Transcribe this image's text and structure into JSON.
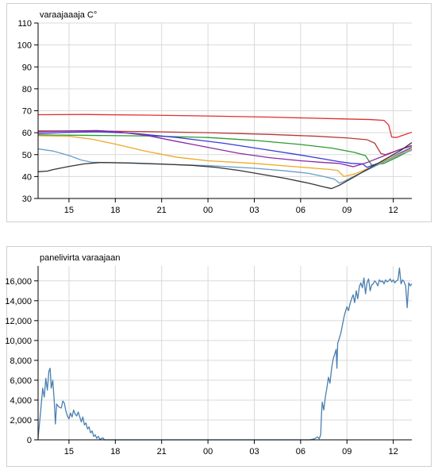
{
  "chart_data": [
    {
      "type": "line",
      "title": "varaajaaaja C°",
      "ylim": [
        30,
        110
      ],
      "yticks": [
        30,
        40,
        50,
        60,
        70,
        80,
        90,
        100,
        110
      ],
      "xlim": [
        13.0,
        37.2
      ],
      "xticks": [
        {
          "x": 15,
          "label": "15"
        },
        {
          "x": 18,
          "label": "18"
        },
        {
          "x": 21,
          "label": "21"
        },
        {
          "x": 24,
          "label": "00"
        },
        {
          "x": 27,
          "label": "03"
        },
        {
          "x": 30,
          "label": "06"
        },
        {
          "x": 33,
          "label": "09"
        },
        {
          "x": 36,
          "label": "12"
        }
      ],
      "grid": true,
      "series": [
        {
          "color": "#e03030",
          "points": [
            [
              13.0,
              68.2
            ],
            [
              16,
              68.3
            ],
            [
              20,
              68.0
            ],
            [
              24,
              67.6
            ],
            [
              28,
              67.1
            ],
            [
              32,
              66.4
            ],
            [
              34.5,
              66.0
            ],
            [
              35.4,
              65.6
            ],
            [
              35.7,
              63.5
            ],
            [
              35.9,
              58.0
            ],
            [
              36.2,
              57.8
            ],
            [
              36.7,
              59.0
            ],
            [
              37.2,
              60.2
            ]
          ]
        },
        {
          "color": "#b83838",
          "points": [
            [
              13.0,
              60.8
            ],
            [
              16,
              60.8
            ],
            [
              20,
              60.5
            ],
            [
              24,
              60.0
            ],
            [
              28,
              59.2
            ],
            [
              31,
              58.4
            ],
            [
              33,
              57.6
            ],
            [
              34.3,
              56.8
            ],
            [
              34.8,
              55.2
            ],
            [
              35.2,
              50.5
            ],
            [
              35.5,
              50.0
            ],
            [
              36.3,
              52.0
            ],
            [
              37.2,
              54.0
            ]
          ]
        },
        {
          "color": "#2e9a2e",
          "points": [
            [
              13.0,
              59.0
            ],
            [
              16,
              58.8
            ],
            [
              20,
              58.5
            ],
            [
              24,
              57.8
            ],
            [
              27,
              56.5
            ],
            [
              30,
              54.6
            ],
            [
              32,
              53.0
            ],
            [
              33.5,
              51.0
            ],
            [
              34.2,
              49.5
            ],
            [
              34.6,
              45.2
            ],
            [
              35.4,
              46.0
            ],
            [
              36.3,
              49.0
            ],
            [
              37.2,
              52.3
            ]
          ]
        },
        {
          "color": "#3a3ad8",
          "points": [
            [
              13.0,
              59.6
            ],
            [
              15,
              60.2
            ],
            [
              17,
              60.4
            ],
            [
              19,
              59.8
            ],
            [
              22,
              57.8
            ],
            [
              25,
              55.2
            ],
            [
              28,
              52.0
            ],
            [
              30,
              49.8
            ],
            [
              31.5,
              48.0
            ],
            [
              32.5,
              46.8
            ],
            [
              33.3,
              46.0
            ],
            [
              34.0,
              45.8
            ],
            [
              34.3,
              44.2
            ],
            [
              35.4,
              47.0
            ],
            [
              36.3,
              50.3
            ],
            [
              37.2,
              53.3
            ]
          ]
        },
        {
          "color": "#8a2aa8",
          "points": [
            [
              13.0,
              60.4
            ],
            [
              15,
              60.8
            ],
            [
              16.8,
              61.0
            ],
            [
              18,
              60.5
            ],
            [
              20,
              58.8
            ],
            [
              22,
              56.0
            ],
            [
              24,
              53.3
            ],
            [
              26,
              50.6
            ],
            [
              28,
              48.6
            ],
            [
              30,
              47.2
            ],
            [
              31.5,
              46.4
            ],
            [
              32.5,
              46.0
            ],
            [
              33.4,
              44.5
            ],
            [
              34.3,
              46.4
            ],
            [
              35.3,
              49.2
            ],
            [
              36.3,
              52.0
            ],
            [
              37.2,
              54.2
            ]
          ]
        },
        {
          "color": "#f0a828",
          "points": [
            [
              13.0,
              58.6
            ],
            [
              15,
              58.4
            ],
            [
              16.5,
              57.0
            ],
            [
              18,
              54.8
            ],
            [
              20,
              51.5
            ],
            [
              22,
              48.8
            ],
            [
              24,
              47.2
            ],
            [
              27,
              46.0
            ],
            [
              30,
              44.3
            ],
            [
              31.8,
              43.3
            ],
            [
              32.4,
              42.8
            ],
            [
              32.8,
              40.0
            ],
            [
              33.5,
              41.2
            ],
            [
              34.5,
              44.0
            ],
            [
              35.5,
              47.5
            ],
            [
              36.3,
              50.0
            ],
            [
              37.2,
              52.6
            ]
          ]
        },
        {
          "color": "#6a9ec8",
          "points": [
            [
              13.0,
              52.6
            ],
            [
              14,
              51.6
            ],
            [
              15,
              49.6
            ],
            [
              15.8,
              47.5
            ],
            [
              16.5,
              46.5
            ],
            [
              18,
              46.3
            ],
            [
              21,
              45.6
            ],
            [
              24,
              45.0
            ],
            [
              27,
              43.8
            ],
            [
              29,
              42.6
            ],
            [
              30.5,
              41.5
            ],
            [
              31.5,
              40.0
            ],
            [
              32.2,
              38.8
            ],
            [
              32.5,
              37.0
            ],
            [
              32.8,
              37.8
            ],
            [
              33.5,
              40.3
            ],
            [
              34.5,
              43.6
            ],
            [
              35.5,
              47.0
            ],
            [
              36.3,
              49.6
            ],
            [
              37.2,
              52.0
            ]
          ]
        },
        {
          "color": "#333333",
          "points": [
            [
              13.0,
              42.2
            ],
            [
              13.6,
              42.5
            ],
            [
              14.0,
              43.2
            ],
            [
              15,
              44.6
            ],
            [
              16,
              45.8
            ],
            [
              17,
              46.4
            ],
            [
              19,
              46.2
            ],
            [
              21,
              45.7
            ],
            [
              23,
              45.1
            ],
            [
              24.5,
              44.2
            ],
            [
              26,
              42.8
            ],
            [
              27.5,
              41.0
            ],
            [
              29,
              39.2
            ],
            [
              30.5,
              37.0
            ],
            [
              31.5,
              35.3
            ],
            [
              32.0,
              34.5
            ],
            [
              32.5,
              36.0
            ],
            [
              33.5,
              40.0
            ],
            [
              34.5,
              44.0
            ],
            [
              35.5,
              48.0
            ],
            [
              36.5,
              52.0
            ],
            [
              37.2,
              55.5
            ]
          ]
        }
      ]
    },
    {
      "type": "line",
      "title": "panelivirta varaajaan",
      "ylim": [
        0,
        17500
      ],
      "yticks": [
        {
          "v": 0,
          "label": "0"
        },
        {
          "v": 2000,
          "label": "2,000"
        },
        {
          "v": 4000,
          "label": "4,000"
        },
        {
          "v": 6000,
          "label": "6,000"
        },
        {
          "v": 8000,
          "label": "8,000"
        },
        {
          "v": 10000,
          "label": "10,000"
        },
        {
          "v": 12000,
          "label": "12,000"
        },
        {
          "v": 14000,
          "label": "14,000"
        },
        {
          "v": 16000,
          "label": "16,000"
        }
      ],
      "xlim": [
        13.0,
        37.2
      ],
      "xticks": [
        {
          "x": 15,
          "label": "15"
        },
        {
          "x": 18,
          "label": "18"
        },
        {
          "x": 21,
          "label": "21"
        },
        {
          "x": 24,
          "label": "00"
        },
        {
          "x": 27,
          "label": "03"
        },
        {
          "x": 30,
          "label": "06"
        },
        {
          "x": 33,
          "label": "09"
        },
        {
          "x": 36,
          "label": "12"
        }
      ],
      "grid": true,
      "series": [
        {
          "color": "#4a7fb0",
          "points": [
            [
              13.0,
              200
            ],
            [
              13.15,
              2600
            ],
            [
              13.3,
              5200
            ],
            [
              13.4,
              4300
            ],
            [
              13.5,
              6200
            ],
            [
              13.6,
              5000
            ],
            [
              13.7,
              6900
            ],
            [
              13.78,
              7200
            ],
            [
              13.85,
              5200
            ],
            [
              13.95,
              6000
            ],
            [
              14.05,
              3800
            ],
            [
              14.12,
              1600
            ],
            [
              14.2,
              3600
            ],
            [
              14.35,
              3300
            ],
            [
              14.5,
              3200
            ],
            [
              14.6,
              3900
            ],
            [
              14.7,
              3700
            ],
            [
              14.8,
              2900
            ],
            [
              14.9,
              2400
            ],
            [
              15.0,
              2100
            ],
            [
              15.1,
              2700
            ],
            [
              15.2,
              2300
            ],
            [
              15.3,
              3000
            ],
            [
              15.4,
              2600
            ],
            [
              15.5,
              2400
            ],
            [
              15.6,
              2800
            ],
            [
              15.7,
              2300
            ],
            [
              15.8,
              1800
            ],
            [
              15.9,
              2300
            ],
            [
              16.0,
              1500
            ],
            [
              16.1,
              1700
            ],
            [
              16.2,
              1100
            ],
            [
              16.3,
              1300
            ],
            [
              16.4,
              700
            ],
            [
              16.5,
              900
            ],
            [
              16.6,
              350
            ],
            [
              16.7,
              500
            ],
            [
              16.8,
              150
            ],
            [
              16.9,
              350
            ],
            [
              17.0,
              60
            ],
            [
              17.2,
              200
            ],
            [
              17.3,
              0
            ],
            [
              19,
              0
            ],
            [
              22,
              0
            ],
            [
              25,
              0
            ],
            [
              28,
              0
            ],
            [
              30,
              0
            ],
            [
              30.6,
              0
            ],
            [
              30.9,
              100
            ],
            [
              31.1,
              300
            ],
            [
              31.2,
              100
            ],
            [
              31.3,
              500
            ],
            [
              31.35,
              2500
            ],
            [
              31.4,
              3800
            ],
            [
              31.5,
              3000
            ],
            [
              31.6,
              4300
            ],
            [
              31.7,
              5200
            ],
            [
              31.8,
              6300
            ],
            [
              31.9,
              5700
            ],
            [
              32.0,
              7100
            ],
            [
              32.1,
              8100
            ],
            [
              32.2,
              8600
            ],
            [
              32.3,
              9100
            ],
            [
              32.35,
              7200
            ],
            [
              32.4,
              9700
            ],
            [
              32.5,
              10200
            ],
            [
              32.6,
              10700
            ],
            [
              32.7,
              11500
            ],
            [
              32.8,
              12300
            ],
            [
              32.9,
              12900
            ],
            [
              33.0,
              13400
            ],
            [
              33.1,
              13000
            ],
            [
              33.2,
              13700
            ],
            [
              33.3,
              14200
            ],
            [
              33.4,
              14600
            ],
            [
              33.5,
              13800
            ],
            [
              33.6,
              15000
            ],
            [
              33.7,
              14200
            ],
            [
              33.8,
              15400
            ],
            [
              33.9,
              15800
            ],
            [
              34.0,
              15300
            ],
            [
              34.1,
              16300
            ],
            [
              34.2,
              14700
            ],
            [
              34.3,
              15800
            ],
            [
              34.4,
              16200
            ],
            [
              34.5,
              15000
            ],
            [
              34.6,
              15600
            ],
            [
              34.7,
              15700
            ],
            [
              34.8,
              16000
            ],
            [
              34.9,
              15800
            ],
            [
              35.0,
              15500
            ],
            [
              35.1,
              16100
            ],
            [
              35.2,
              15900
            ],
            [
              35.3,
              16000
            ],
            [
              35.4,
              15700
            ],
            [
              35.5,
              16100
            ],
            [
              35.6,
              15900
            ],
            [
              35.7,
              16000
            ],
            [
              35.8,
              16200
            ],
            [
              35.9,
              15900
            ],
            [
              36.0,
              16100
            ],
            [
              36.1,
              15800
            ],
            [
              36.2,
              16000
            ],
            [
              36.3,
              16100
            ],
            [
              36.4,
              17300
            ],
            [
              36.5,
              15700
            ],
            [
              36.6,
              16100
            ],
            [
              36.7,
              15900
            ],
            [
              36.8,
              15500
            ],
            [
              36.9,
              13300
            ],
            [
              37.0,
              15800
            ],
            [
              37.1,
              15500
            ],
            [
              37.2,
              15700
            ]
          ]
        }
      ]
    }
  ]
}
